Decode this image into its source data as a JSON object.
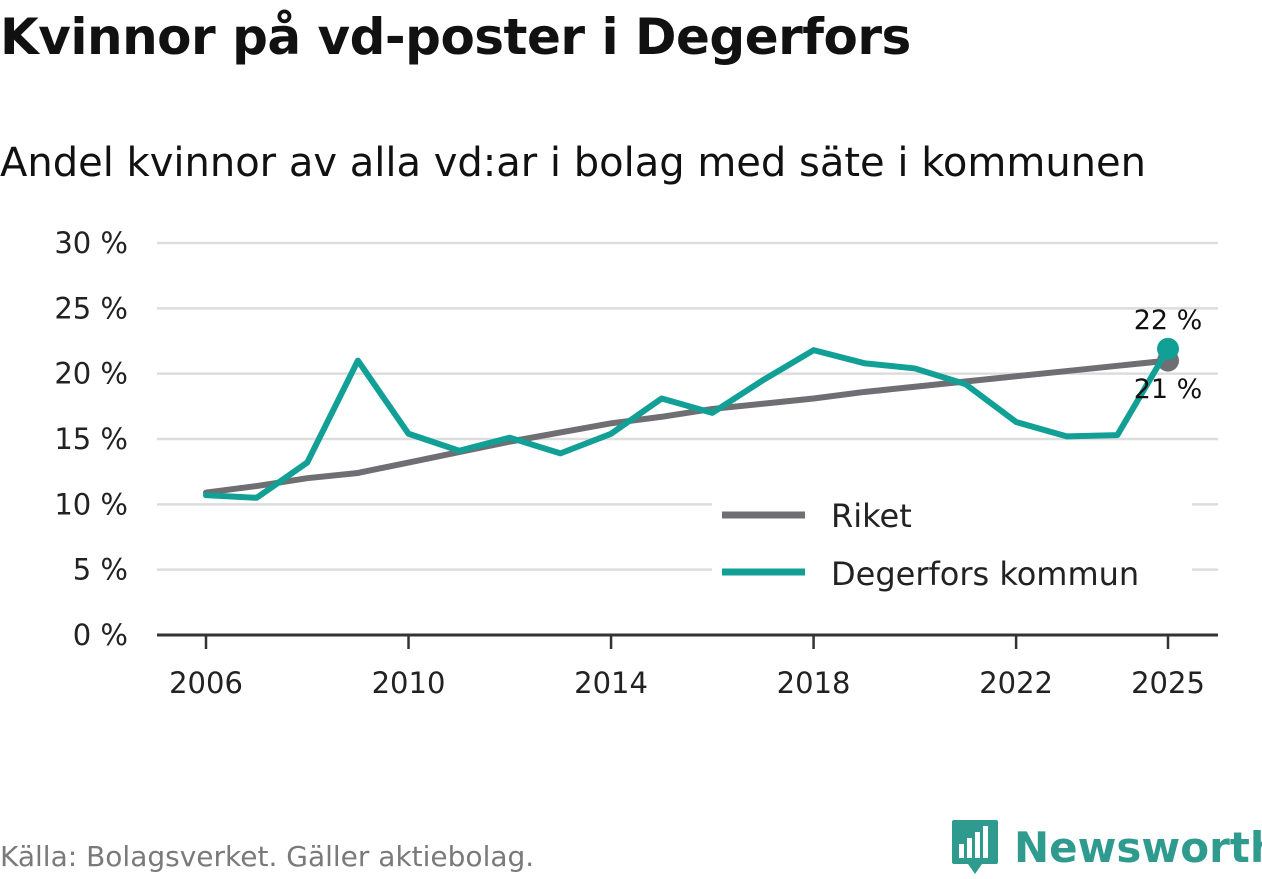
{
  "title": "Kvinnor på vd-poster i Degerfors",
  "subtitle": "Andel kvinnor av alla vd:ar i bolag med säte i kommunen",
  "source": "Källa: Bolagsverket. Gäller aktiebolag.",
  "brand": {
    "name": "Newsworthy",
    "color": "#2f9b8e"
  },
  "chart_data": {
    "type": "line",
    "title": "Kvinnor på vd-poster i Degerfors",
    "subtitle": "Andel kvinnor av alla vd:ar i bolag med säte i kommunen",
    "xlabel": "",
    "ylabel": "",
    "ylim": [
      0,
      30
    ],
    "yticks": [
      0,
      5,
      10,
      15,
      20,
      25,
      30
    ],
    "ytick_labels": [
      "0 %",
      "5 %",
      "10 %",
      "15 %",
      "20 %",
      "25 %",
      "30 %"
    ],
    "xlim": [
      2006,
      2025
    ],
    "xticks": [
      2006,
      2010,
      2014,
      2018,
      2022,
      2025
    ],
    "xtick_labels": [
      "2006",
      "2010",
      "2014",
      "2018",
      "2022",
      "2025"
    ],
    "grid": true,
    "legend_position": "bottom-right",
    "x": [
      2006,
      2007,
      2008,
      2009,
      2010,
      2011,
      2012,
      2013,
      2014,
      2015,
      2016,
      2017,
      2018,
      2019,
      2020,
      2021,
      2022,
      2023,
      2024,
      2025
    ],
    "series": [
      {
        "name": "Riket",
        "color": "#6f6e73",
        "values": [
          10.9,
          11.4,
          12.0,
          12.4,
          13.2,
          14.0,
          14.8,
          15.5,
          16.2,
          16.7,
          17.3,
          17.7,
          18.1,
          18.6,
          19.0,
          19.4,
          19.8,
          20.2,
          20.6,
          21.0
        ],
        "end_label": "21 %"
      },
      {
        "name": "Degerfors kommun",
        "color": "#12a096",
        "values": [
          10.7,
          10.5,
          13.2,
          21.0,
          15.4,
          14.1,
          15.1,
          13.9,
          15.4,
          18.1,
          17.0,
          19.5,
          21.8,
          20.8,
          20.4,
          19.2,
          16.3,
          15.2,
          15.3,
          21.9
        ],
        "end_label": "22 %"
      }
    ]
  }
}
